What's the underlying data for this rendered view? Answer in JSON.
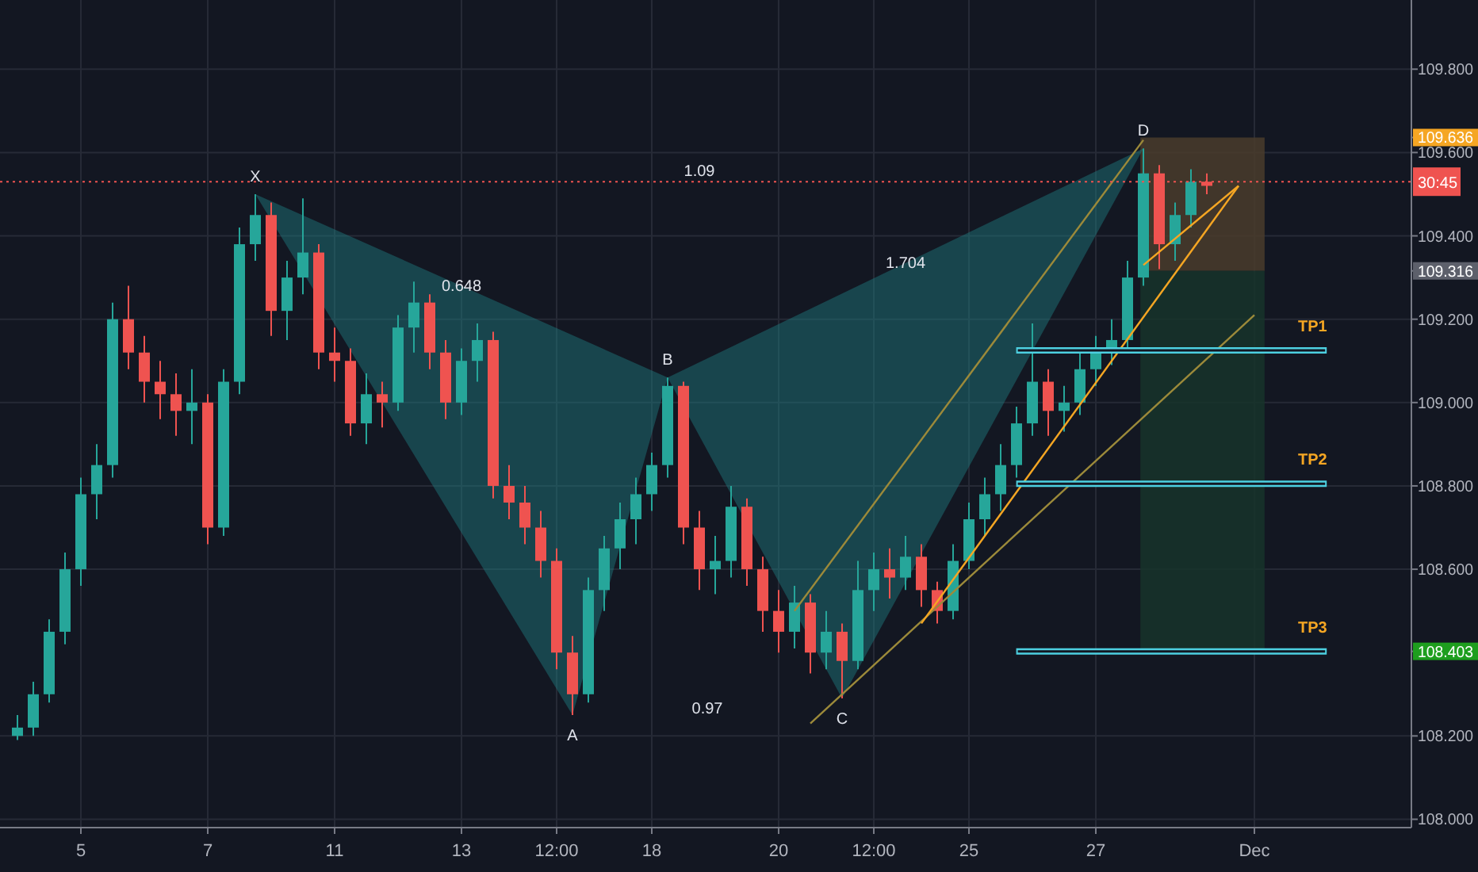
{
  "chart_data": {
    "type": "candlestick",
    "categories": [
      null,
      null,
      null,
      null,
      "5",
      null,
      null,
      null,
      null,
      null,
      null,
      null,
      "7",
      null,
      null,
      null,
      null,
      null,
      null,
      null,
      "11",
      null,
      null,
      null,
      null,
      null,
      null,
      null,
      "13",
      null,
      null,
      null,
      null,
      null,
      "12:00",
      null,
      null,
      null,
      null,
      null,
      "18",
      null,
      null,
      null,
      null,
      null,
      null,
      null,
      "20",
      null,
      null,
      null,
      null,
      null,
      "12:00",
      null,
      null,
      null,
      null,
      null,
      "25",
      null,
      null,
      null,
      null,
      null,
      null,
      null,
      "27",
      null,
      null,
      null,
      null,
      null,
      null,
      null,
      null,
      null,
      "Dec",
      null,
      null,
      null,
      null,
      null,
      null,
      null,
      null,
      null
    ],
    "ohlc": [
      [
        108.2,
        108.25,
        108.19,
        108.22
      ],
      [
        108.22,
        108.33,
        108.2,
        108.3
      ],
      [
        108.3,
        108.48,
        108.28,
        108.45
      ],
      [
        108.45,
        108.64,
        108.42,
        108.6
      ],
      [
        108.6,
        108.82,
        108.56,
        108.78
      ],
      [
        108.78,
        108.9,
        108.72,
        108.85
      ],
      [
        108.85,
        109.24,
        108.82,
        109.2
      ],
      [
        109.2,
        109.28,
        109.08,
        109.12
      ],
      [
        109.12,
        109.16,
        109.0,
        109.05
      ],
      [
        109.05,
        109.1,
        108.96,
        109.02
      ],
      [
        109.02,
        109.07,
        108.92,
        108.98
      ],
      [
        108.98,
        109.08,
        108.9,
        109.0
      ],
      [
        109.0,
        109.02,
        108.66,
        108.7
      ],
      [
        108.7,
        109.08,
        108.68,
        109.05
      ],
      [
        109.05,
        109.42,
        109.02,
        109.38
      ],
      [
        109.38,
        109.5,
        109.34,
        109.45
      ],
      [
        109.45,
        109.48,
        109.16,
        109.22
      ],
      [
        109.22,
        109.34,
        109.15,
        109.3
      ],
      [
        109.3,
        109.49,
        109.26,
        109.36
      ],
      [
        109.36,
        109.38,
        109.08,
        109.12
      ],
      [
        109.12,
        109.18,
        109.05,
        109.1
      ],
      [
        109.1,
        109.13,
        108.92,
        108.95
      ],
      [
        108.95,
        109.07,
        108.9,
        109.02
      ],
      [
        109.02,
        109.05,
        108.94,
        109.0
      ],
      [
        109.0,
        109.21,
        108.98,
        109.18
      ],
      [
        109.18,
        109.29,
        109.12,
        109.24
      ],
      [
        109.24,
        109.26,
        109.08,
        109.12
      ],
      [
        109.12,
        109.15,
        108.96,
        109.0
      ],
      [
        109.0,
        109.13,
        108.97,
        109.1
      ],
      [
        109.1,
        109.19,
        109.05,
        109.15
      ],
      [
        109.15,
        109.17,
        108.77,
        108.8
      ],
      [
        108.8,
        108.85,
        108.72,
        108.76
      ],
      [
        108.76,
        108.8,
        108.66,
        108.7
      ],
      [
        108.7,
        108.74,
        108.58,
        108.62
      ],
      [
        108.62,
        108.65,
        108.36,
        108.4
      ],
      [
        108.4,
        108.44,
        108.25,
        108.3
      ],
      [
        108.3,
        108.58,
        108.28,
        108.55
      ],
      [
        108.55,
        108.68,
        108.5,
        108.65
      ],
      [
        108.65,
        108.76,
        108.6,
        108.72
      ],
      [
        108.72,
        108.82,
        108.66,
        108.78
      ],
      [
        108.78,
        108.88,
        108.74,
        108.85
      ],
      [
        108.85,
        109.06,
        108.82,
        109.04
      ],
      [
        109.04,
        109.05,
        108.66,
        108.7
      ],
      [
        108.7,
        108.74,
        108.55,
        108.6
      ],
      [
        108.6,
        108.68,
        108.54,
        108.62
      ],
      [
        108.62,
        108.8,
        108.58,
        108.75
      ],
      [
        108.75,
        108.77,
        108.56,
        108.6
      ],
      [
        108.6,
        108.63,
        108.45,
        108.5
      ],
      [
        108.5,
        108.55,
        108.4,
        108.45
      ],
      [
        108.45,
        108.56,
        108.41,
        108.52
      ],
      [
        108.52,
        108.54,
        108.35,
        108.4
      ],
      [
        108.4,
        108.5,
        108.36,
        108.45
      ],
      [
        108.45,
        108.47,
        108.29,
        108.38
      ],
      [
        108.38,
        108.62,
        108.36,
        108.55
      ],
      [
        108.55,
        108.64,
        108.5,
        108.6
      ],
      [
        108.6,
        108.65,
        108.53,
        108.58
      ],
      [
        108.58,
        108.68,
        108.55,
        108.63
      ],
      [
        108.63,
        108.66,
        108.51,
        108.55
      ],
      [
        108.55,
        108.57,
        108.47,
        108.5
      ],
      [
        108.5,
        108.66,
        108.48,
        108.62
      ],
      [
        108.62,
        108.76,
        108.6,
        108.72
      ],
      [
        108.72,
        108.82,
        108.68,
        108.78
      ],
      [
        108.78,
        108.9,
        108.74,
        108.85
      ],
      [
        108.85,
        108.99,
        108.82,
        108.95
      ],
      [
        108.95,
        109.19,
        108.92,
        109.05
      ],
      [
        109.05,
        109.08,
        108.92,
        108.98
      ],
      [
        108.98,
        109.04,
        108.93,
        109.0
      ],
      [
        109.0,
        109.12,
        108.97,
        109.08
      ],
      [
        109.08,
        109.16,
        109.04,
        109.12
      ],
      [
        109.12,
        109.2,
        109.09,
        109.15
      ],
      [
        109.15,
        109.34,
        109.12,
        109.3
      ],
      [
        109.3,
        109.61,
        109.28,
        109.55
      ],
      [
        109.55,
        109.57,
        109.32,
        109.38
      ],
      [
        109.38,
        109.48,
        109.34,
        109.45
      ],
      [
        109.45,
        109.56,
        109.42,
        109.53
      ],
      [
        109.53,
        109.55,
        109.5,
        109.52
      ],
      null,
      null,
      null,
      null,
      null,
      null,
      null,
      null,
      null,
      null,
      null,
      null
    ],
    "series": [
      {
        "type": "line",
        "color": "#9c8a3a",
        "values": [
          null,
          null,
          null,
          null,
          null,
          null,
          null,
          null,
          null,
          null,
          null,
          null,
          null,
          null,
          null,
          null,
          null,
          null,
          null,
          null,
          null,
          null,
          null,
          null,
          null,
          null,
          null,
          null,
          null,
          null,
          null,
          null,
          null,
          null,
          null,
          null,
          null,
          null,
          null,
          null,
          null,
          null,
          null,
          null,
          null,
          null,
          null,
          null,
          null,
          108.5,
          null,
          null,
          null,
          null,
          null,
          null,
          null,
          null,
          null,
          null,
          null,
          null,
          null,
          null,
          null,
          null,
          null,
          null,
          null,
          null,
          null,
          109.63,
          null,
          null,
          null,
          null,
          null,
          null,
          null,
          null,
          null,
          null,
          null,
          null,
          null,
          null,
          null,
          null
        ]
      },
      {
        "type": "line",
        "color": "#9c8a3a",
        "values": [
          null,
          null,
          null,
          null,
          null,
          null,
          null,
          null,
          null,
          null,
          null,
          null,
          null,
          null,
          null,
          null,
          null,
          null,
          null,
          null,
          null,
          null,
          null,
          null,
          null,
          null,
          null,
          null,
          null,
          null,
          null,
          null,
          null,
          null,
          null,
          null,
          null,
          null,
          null,
          null,
          null,
          null,
          null,
          null,
          null,
          null,
          null,
          null,
          null,
          null,
          108.23,
          null,
          null,
          null,
          null,
          null,
          null,
          null,
          null,
          null,
          null,
          null,
          null,
          null,
          null,
          null,
          null,
          null,
          null,
          null,
          null,
          null,
          null,
          null,
          null,
          null,
          null,
          null,
          109.21,
          null,
          null,
          null,
          null,
          null,
          null,
          null,
          null,
          null
        ]
      },
      {
        "type": "line",
        "color": "#f5a623",
        "values": [
          null,
          null,
          null,
          null,
          null,
          null,
          null,
          null,
          null,
          null,
          null,
          null,
          null,
          null,
          null,
          null,
          null,
          null,
          null,
          null,
          null,
          null,
          null,
          null,
          null,
          null,
          null,
          null,
          null,
          null,
          null,
          null,
          null,
          null,
          null,
          null,
          null,
          null,
          null,
          null,
          null,
          null,
          null,
          null,
          null,
          null,
          null,
          null,
          null,
          null,
          null,
          null,
          null,
          null,
          null,
          null,
          null,
          108.47,
          null,
          null,
          null,
          null,
          null,
          null,
          null,
          null,
          null,
          null,
          null,
          null,
          null,
          null,
          null,
          null,
          null,
          null,
          null,
          109.52,
          null,
          null,
          null,
          null,
          null,
          null,
          null,
          null,
          null,
          null
        ]
      },
      {
        "type": "line",
        "color": "#f5a623",
        "values": [
          null,
          null,
          null,
          null,
          null,
          null,
          null,
          null,
          null,
          null,
          null,
          null,
          null,
          null,
          null,
          null,
          null,
          null,
          null,
          null,
          null,
          null,
          null,
          null,
          null,
          null,
          null,
          null,
          null,
          null,
          null,
          null,
          null,
          null,
          null,
          null,
          null,
          null,
          null,
          null,
          null,
          null,
          null,
          null,
          null,
          null,
          null,
          null,
          null,
          null,
          null,
          null,
          null,
          null,
          null,
          null,
          null,
          null,
          null,
          null,
          null,
          null,
          null,
          null,
          null,
          null,
          null,
          null,
          null,
          null,
          null,
          109.33,
          null,
          null,
          null,
          null,
          null,
          109.52,
          null,
          null,
          null,
          null,
          null,
          null,
          null,
          null,
          null,
          null
        ]
      }
    ],
    "annotations": [
      {
        "text": "X",
        "y": 109.5
      },
      {
        "text": "A",
        "y": 108.25
      },
      {
        "text": "B",
        "y": 109.06
      },
      {
        "text": "C",
        "y": 108.29
      },
      {
        "text": "D",
        "y": 109.61
      },
      "0.648",
      "1.09",
      "1.704",
      "0.97",
      "30:45"
    ],
    "ref_lines": [
      {
        "axis": "y",
        "value": 109.53,
        "color": "#ef5350",
        "line_style": "dotted"
      },
      {
        "axis": "y",
        "value": 109.125,
        "label": "TP1",
        "color": "#4dd0e1",
        "line_style": "solid"
      },
      {
        "axis": "y",
        "value": 108.805,
        "label": "TP2",
        "color": "#4dd0e1",
        "line_style": "solid"
      },
      {
        "axis": "y",
        "value": 108.403,
        "label": "TP3",
        "color": "#4dd0e1",
        "line_style": "solid"
      }
    ],
    "bands": [
      {
        "axis": "y",
        "from": 109.316,
        "to": 109.636,
        "color": "#4a3c2c"
      },
      {
        "axis": "y",
        "from": 108.403,
        "to": 109.316,
        "color": "#18342a"
      }
    ],
    "ylim": [
      107.98,
      109.966
    ],
    "yticks": [
      {
        "value": 108,
        "label": "108.000"
      },
      {
        "value": 108.2,
        "label": "108.200"
      },
      108.403,
      {
        "value": 108.6,
        "label": "108.600"
      },
      {
        "value": 108.8,
        "label": "108.800"
      },
      {
        "value": 109,
        "label": "109.000"
      },
      {
        "value": 109.2,
        "label": "109.200"
      },
      109.316,
      {
        "value": 109.4,
        "label": "109.400"
      },
      {
        "value": 109.6,
        "label": "109.600"
      },
      109.636,
      {
        "value": 109.8,
        "label": "109.800"
      }
    ],
    "grid": true,
    "marker": "none"
  }
}
